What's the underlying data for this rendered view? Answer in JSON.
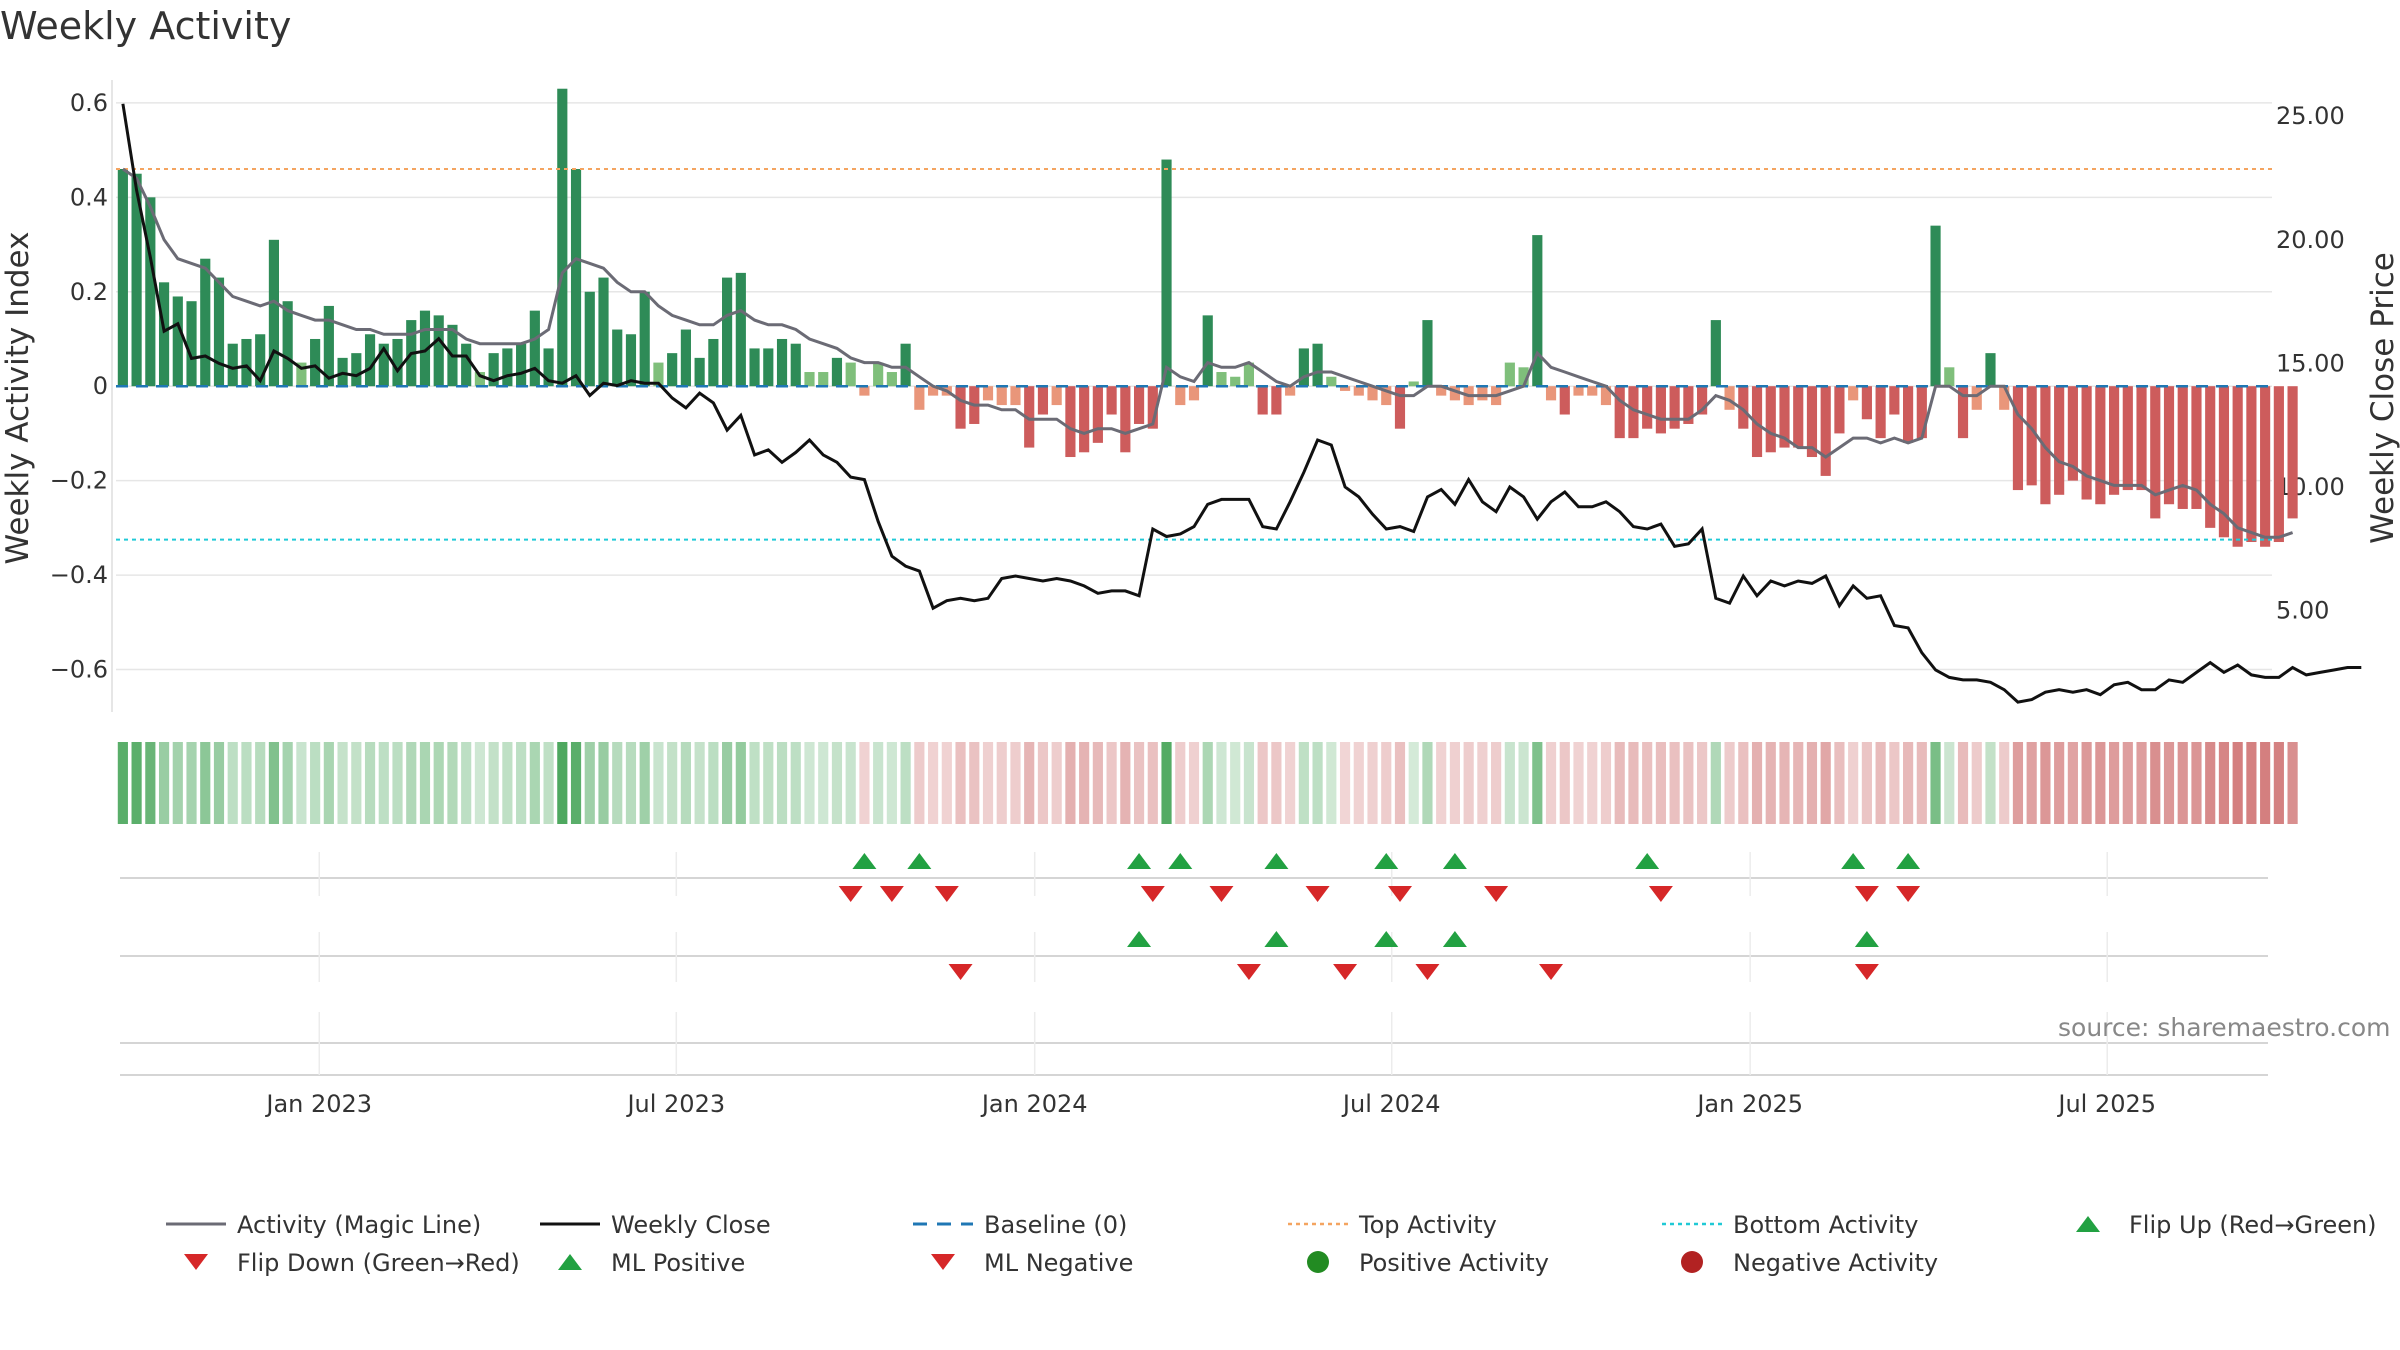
{
  "chart_data": {
    "type": "bar",
    "title": "Weekly Activity",
    "source": "source: sharemaestro.com",
    "ylabel": "Weekly Activity Index",
    "y2label": "Weekly Close Price",
    "ylim": [
      -0.69,
      0.64
    ],
    "y2lim": [
      0.9,
      26.3
    ],
    "yticks": [
      "0.6",
      "0.4",
      "0.2",
      "0",
      "−0.2",
      "−0.4",
      "−0.6"
    ],
    "yticks_values": [
      0.6,
      0.4,
      0.2,
      0,
      -0.2,
      -0.4,
      -0.6
    ],
    "y2ticks": [
      "25.00",
      "20.00",
      "15.00",
      "10.00",
      "5.00"
    ],
    "y2ticks_values": [
      25,
      20,
      15,
      10,
      5
    ],
    "xlim": [
      -0.5,
      156.5
    ],
    "xticks": [
      "Jan 2023",
      "Jul 2023",
      "Jan 2024",
      "Jul 2024",
      "Jan 2025",
      "Jul 2025"
    ],
    "xticks_index": [
      14.3,
      40.3,
      66.4,
      92.4,
      118.5,
      144.5
    ],
    "top_activity": 0.46,
    "bottom_activity": -0.325,
    "activity": [
      0.46,
      0.45,
      0.4,
      0.22,
      0.19,
      0.18,
      0.27,
      0.23,
      0.09,
      0.1,
      0.11,
      0.31,
      0.18,
      0.05,
      0.1,
      0.17,
      0.06,
      0.07,
      0.11,
      0.09,
      0.1,
      0.14,
      0.16,
      0.15,
      0.13,
      0.09,
      0.03,
      0.07,
      0.08,
      0.09,
      0.16,
      0.08,
      0.63,
      0.46,
      0.2,
      0.23,
      0.12,
      0.11,
      0.2,
      0.05,
      0.07,
      0.12,
      0.06,
      0.1,
      0.23,
      0.24,
      0.08,
      0.08,
      0.1,
      0.09,
      0.03,
      0.03,
      0.06,
      0.05,
      -0.02,
      0.05,
      0.03,
      0.09,
      -0.05,
      -0.02,
      -0.02,
      -0.09,
      -0.08,
      -0.03,
      -0.04,
      -0.04,
      -0.13,
      -0.06,
      -0.04,
      -0.15,
      -0.14,
      -0.12,
      -0.06,
      -0.14,
      -0.08,
      -0.09,
      0.48,
      -0.04,
      -0.03,
      0.15,
      0.03,
      0.02,
      0.05,
      -0.06,
      -0.06,
      -0.02,
      0.08,
      0.09,
      0.02,
      -0.01,
      -0.02,
      -0.03,
      -0.04,
      -0.09,
      0.01,
      0.14,
      -0.02,
      -0.03,
      -0.04,
      -0.03,
      -0.04,
      0.05,
      0.04,
      0.32,
      -0.03,
      -0.06,
      -0.02,
      -0.02,
      -0.04,
      -0.11,
      -0.11,
      -0.09,
      -0.1,
      -0.09,
      -0.08,
      -0.06,
      0.14,
      -0.05,
      -0.09,
      -0.15,
      -0.14,
      -0.13,
      -0.13,
      -0.15,
      -0.19,
      -0.1,
      -0.03,
      -0.07,
      -0.11,
      -0.06,
      -0.12,
      -0.11,
      0.34,
      0.04,
      -0.11,
      -0.05,
      0.07,
      -0.05,
      -0.22,
      -0.21,
      -0.25,
      -0.23,
      -0.2,
      -0.24,
      -0.25,
      -0.23,
      -0.22,
      -0.22,
      -0.28,
      -0.25,
      -0.26,
      -0.26,
      -0.3,
      -0.32,
      -0.34,
      -0.33,
      -0.34,
      -0.33,
      -0.28
    ],
    "magic_line": [
      0.46,
      0.44,
      0.38,
      0.31,
      0.27,
      0.26,
      0.25,
      0.22,
      0.19,
      0.18,
      0.17,
      0.18,
      0.16,
      0.15,
      0.14,
      0.14,
      0.13,
      0.12,
      0.12,
      0.11,
      0.11,
      0.11,
      0.12,
      0.12,
      0.12,
      0.1,
      0.09,
      0.09,
      0.09,
      0.09,
      0.1,
      0.12,
      0.24,
      0.27,
      0.26,
      0.25,
      0.22,
      0.2,
      0.2,
      0.17,
      0.15,
      0.14,
      0.13,
      0.13,
      0.15,
      0.16,
      0.14,
      0.13,
      0.13,
      0.12,
      0.1,
      0.09,
      0.08,
      0.06,
      0.05,
      0.05,
      0.04,
      0.04,
      0.02,
      0.0,
      -0.01,
      -0.03,
      -0.04,
      -0.04,
      -0.05,
      -0.05,
      -0.07,
      -0.07,
      -0.07,
      -0.09,
      -0.1,
      -0.09,
      -0.09,
      -0.1,
      -0.09,
      -0.08,
      0.04,
      0.02,
      0.01,
      0.05,
      0.04,
      0.04,
      0.05,
      0.03,
      0.01,
      0.0,
      0.02,
      0.03,
      0.03,
      0.02,
      0.01,
      -0.0,
      -0.01,
      -0.02,
      -0.02,
      0.0,
      -0.0,
      -0.01,
      -0.02,
      -0.02,
      -0.02,
      -0.01,
      0.0,
      0.07,
      0.04,
      0.03,
      0.02,
      0.01,
      0.0,
      -0.03,
      -0.05,
      -0.06,
      -0.07,
      -0.07,
      -0.07,
      -0.05,
      -0.02,
      -0.03,
      -0.05,
      -0.08,
      -0.1,
      -0.11,
      -0.13,
      -0.13,
      -0.15,
      -0.13,
      -0.11,
      -0.11,
      -0.12,
      -0.11,
      -0.12,
      -0.11,
      0.0,
      0.0,
      -0.02,
      -0.02,
      0.0,
      0.0,
      -0.06,
      -0.09,
      -0.13,
      -0.16,
      -0.17,
      -0.19,
      -0.2,
      -0.21,
      -0.21,
      -0.21,
      -0.23,
      -0.22,
      -0.21,
      -0.22,
      -0.25,
      -0.27,
      -0.3,
      -0.31,
      -0.32,
      -0.32,
      -0.31
    ],
    "weekly_close": [
      25.5,
      22.0,
      19.3,
      16.3,
      16.6,
      15.2,
      15.3,
      15.0,
      14.8,
      14.9,
      14.3,
      15.5,
      15.2,
      14.8,
      14.9,
      14.4,
      14.6,
      14.5,
      14.8,
      15.6,
      14.7,
      15.4,
      15.5,
      16.0,
      15.3,
      15.3,
      14.5,
      14.3,
      14.5,
      14.6,
      14.8,
      14.3,
      14.2,
      14.5,
      13.7,
      14.2,
      14.1,
      14.3,
      14.2,
      14.2,
      13.6,
      13.2,
      13.8,
      13.4,
      12.3,
      12.9,
      11.3,
      11.5,
      11.0,
      11.4,
      11.9,
      11.3,
      11.0,
      10.4,
      10.3,
      8.6,
      7.2,
      6.8,
      6.6,
      5.1,
      5.4,
      5.5,
      5.4,
      5.5,
      6.3,
      6.4,
      6.3,
      6.2,
      6.3,
      6.2,
      6.0,
      5.7,
      5.8,
      5.8,
      5.6,
      8.3,
      8.0,
      8.1,
      8.4,
      9.3,
      9.5,
      9.5,
      9.5,
      8.4,
      8.3,
      9.4,
      10.6,
      11.9,
      11.7,
      10.0,
      9.6,
      8.9,
      8.3,
      8.4,
      8.2,
      9.6,
      9.9,
      9.3,
      10.3,
      9.4,
      9.0,
      10.0,
      9.6,
      8.7,
      9.4,
      9.8,
      9.2,
      9.2,
      9.4,
      9.0,
      8.4,
      8.3,
      8.5,
      7.6,
      7.7,
      8.3,
      5.5,
      5.3,
      6.4,
      5.6,
      6.2,
      6.0,
      6.2,
      6.1,
      6.4,
      5.2,
      6.0,
      5.5,
      5.6,
      4.4,
      4.3,
      3.3,
      2.6,
      2.3,
      2.2,
      2.2,
      2.1,
      1.8,
      1.3,
      1.4,
      1.7,
      1.8,
      1.7,
      1.8,
      1.6,
      2.0,
      2.1,
      1.8,
      1.8,
      2.2,
      2.1,
      2.5,
      2.9,
      2.5,
      2.8,
      2.4,
      2.3,
      2.3,
      2.7,
      2.4,
      2.5,
      2.6,
      2.7,
      2.7
    ],
    "flip_up_index": [
      54,
      58,
      74,
      77,
      84,
      92,
      97,
      111,
      126,
      130
    ],
    "flip_down_index": [
      53,
      56,
      60,
      75,
      80,
      87,
      93,
      100,
      112,
      127,
      130
    ],
    "ml_positive_index": [
      74,
      84,
      92,
      97,
      127
    ],
    "ml_negative_index": [
      61,
      82,
      89,
      95,
      104,
      127
    ],
    "legend": [
      "Activity (Magic Line)",
      "Weekly Close",
      "Baseline (0)",
      "Top Activity",
      "Bottom Activity",
      "Flip Up (Red→Green)",
      "Flip Down (Green→Red)",
      "ML Positive",
      "ML Negative",
      "Positive Activity",
      "Negative Activity"
    ],
    "colors": {
      "pos_strong": "#2e8b57",
      "pos_light": "#7fbf7b",
      "neg_strong": "#cd5c5c",
      "neg_light": "#e9967a",
      "magic_line": "#6b6b75",
      "close": "#111111",
      "baseline": "#1f77b4",
      "top": "#f4a460",
      "bottom": "#20c9d6",
      "tri_up": "#22a142",
      "tri_down": "#d62728",
      "pos_dot": "#228b22",
      "neg_dot": "#b22222",
      "grid": "#e6e6e6",
      "lane": "#d5d5d5"
    }
  }
}
